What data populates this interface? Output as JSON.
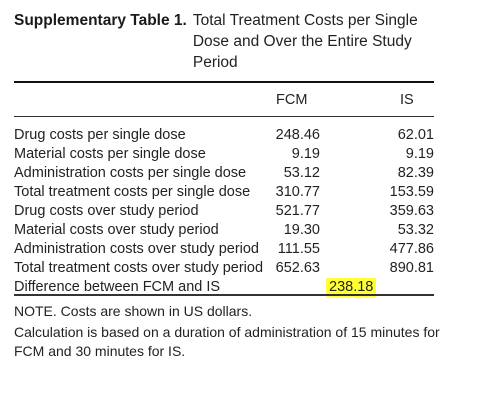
{
  "caption": {
    "label": "Supplementary Table 1.",
    "title": "Total Treatment Costs per Single Dose and Over the Entire Study Period"
  },
  "columns": [
    "FCM",
    "IS"
  ],
  "rows": [
    {
      "item": "Drug costs per single dose",
      "fcm": "248.46",
      "is": "62.01"
    },
    {
      "item": "Material costs per single dose",
      "fcm": "9.19",
      "is": "9.19"
    },
    {
      "item": "Administration costs per single dose",
      "fcm": "53.12",
      "is": "82.39"
    },
    {
      "item": "Total treatment costs per single dose",
      "fcm": "310.77",
      "is": "153.59"
    },
    {
      "item": "Drug costs over study period",
      "fcm": "521.77",
      "is": "359.63"
    },
    {
      "item": "Material costs over study period",
      "fcm": "19.30",
      "is": "53.32"
    },
    {
      "item": "Administration costs over study period",
      "fcm": "111.55",
      "is": "477.86"
    },
    {
      "item": "Total treatment costs over study period",
      "fcm": "652.63",
      "is": "890.81"
    }
  ],
  "difference": {
    "item": "Difference between FCM and IS",
    "value": "238.18",
    "highlight_color": "#ffff33"
  },
  "notes": [
    "NOTE. Costs are shown in US dollars.",
    "Calculation is based on a duration of administration of 15 minutes for FCM and 30 minutes for IS."
  ]
}
